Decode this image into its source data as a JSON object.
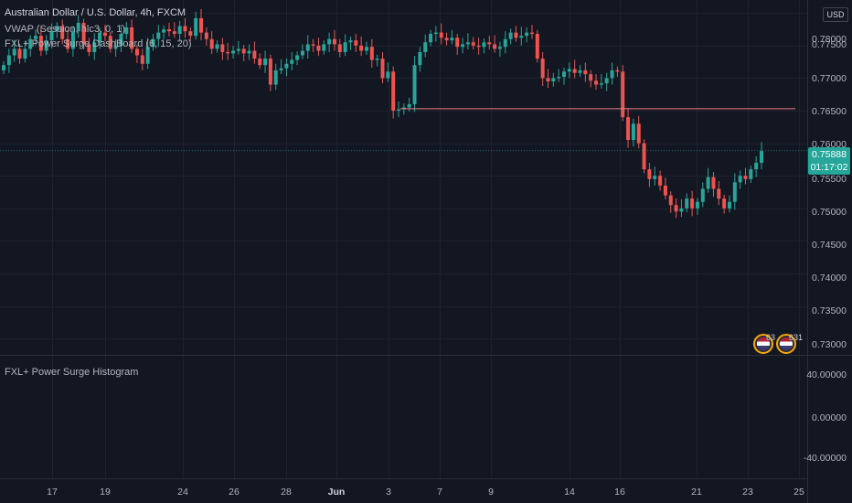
{
  "symbol": {
    "title": "Australian Dollar / U.S. Dollar, 4h, FXCM",
    "indicators": [
      "VWAP (Session, hlc3, 0, 1)",
      "FXL+ Power Surge DashBoard (6, 15, 20)"
    ]
  },
  "currency_button": "USD",
  "price_scale": [
    "0.78000",
    "0.77500",
    "0.77000",
    "0.76500",
    "0.76000",
    "0.75500",
    "0.75000",
    "0.74500",
    "0.74000",
    "0.73500",
    "0.73000"
  ],
  "current_price": {
    "value": "0.75888",
    "countdown": "01:17:02",
    "color": "#26a69a"
  },
  "histogram_pane": {
    "title": "FXL+ Power Surge Histogram",
    "scale": [
      "40.00000",
      "0.00000",
      "-40.00000"
    ]
  },
  "time_axis": [
    "17",
    "19",
    "24",
    "26",
    "28",
    "Jun",
    "3",
    "7",
    "9",
    "14",
    "16",
    "21",
    "23",
    "25"
  ],
  "event_badges": [
    {
      "icon": "us-flag-icon",
      "count": "63"
    },
    {
      "icon": "us-flag-icon",
      "count": "631"
    }
  ],
  "colors": {
    "up": "#26a69a",
    "down": "#ef5350",
    "background": "#131722",
    "level_line": "#f07c82"
  },
  "chart_data": {
    "type": "candlestick",
    "price_range": [
      0.7275,
      0.782
    ],
    "horizontal_level": 0.7653,
    "closes": [
      0.772,
      0.7735,
      0.7745,
      0.773,
      0.7745,
      0.776,
      0.7765,
      0.7742,
      0.7758,
      0.7772,
      0.778,
      0.776,
      0.7745,
      0.7772,
      0.7785,
      0.7752,
      0.774,
      0.7755,
      0.777,
      0.7765,
      0.7745,
      0.775,
      0.7768,
      0.7778,
      0.7745,
      0.7735,
      0.7722,
      0.7748,
      0.776,
      0.777,
      0.7775,
      0.7772,
      0.7768,
      0.778,
      0.7772,
      0.7765,
      0.7792,
      0.777,
      0.776,
      0.7745,
      0.7752,
      0.774,
      0.7738,
      0.7742,
      0.7745,
      0.7738,
      0.7742,
      0.773,
      0.772,
      0.773,
      0.769,
      0.7712,
      0.7715,
      0.7722,
      0.7728,
      0.7735,
      0.7742,
      0.7752,
      0.775,
      0.7742,
      0.7752,
      0.776,
      0.7752,
      0.774,
      0.7755,
      0.7758,
      0.775,
      0.7742,
      0.7748,
      0.7728,
      0.773,
      0.77,
      0.771,
      0.765,
      0.7652,
      0.7655,
      0.766,
      0.772,
      0.774,
      0.7755,
      0.7768,
      0.777,
      0.7762,
      0.7758,
      0.7762,
      0.7748,
      0.7752,
      0.7755,
      0.775,
      0.7748,
      0.7755,
      0.7752,
      0.7745,
      0.7748,
      0.776,
      0.777,
      0.7762,
      0.7765,
      0.777,
      0.7768,
      0.773,
      0.77,
      0.7695,
      0.77,
      0.7702,
      0.771,
      0.7714,
      0.7708,
      0.7712,
      0.7706,
      0.7696,
      0.769,
      0.7692,
      0.77,
      0.7712,
      0.771,
      0.764,
      0.7605,
      0.763,
      0.76,
      0.756,
      0.7545,
      0.755,
      0.7535,
      0.752,
      0.7505,
      0.7495,
      0.75,
      0.7515,
      0.75,
      0.751,
      0.753,
      0.7548,
      0.753,
      0.7515,
      0.75,
      0.751,
      0.754,
      0.755,
      0.7545,
      0.756,
      0.757,
      0.7588
    ]
  }
}
